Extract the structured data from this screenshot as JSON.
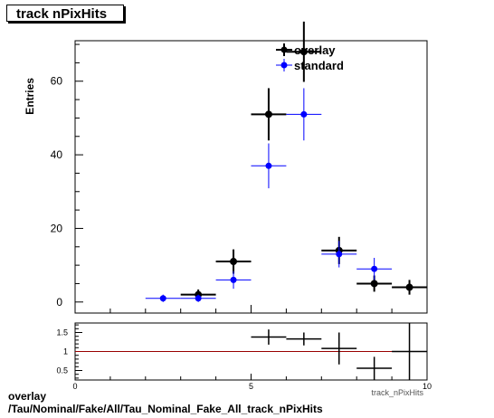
{
  "title": "track nPixHits",
  "footer": {
    "line1": "overlay",
    "line2": "/Tau/Nominal/Fake/All/Tau_Nominal_Fake_All_track_nPixHits"
  },
  "chart_data": [
    {
      "type": "scatter",
      "panel": "main",
      "ylabel": "Entries",
      "xlim": [
        0,
        10
      ],
      "ylim": [
        -3,
        71
      ],
      "yticks": [
        0,
        20,
        40,
        60
      ],
      "legend": {
        "placement": "top-right",
        "entries": [
          "overlay",
          "standard"
        ]
      },
      "series": [
        {
          "name": "overlay",
          "color": "#000000",
          "points": [
            {
              "x": 3.5,
              "y": 2,
              "yerr": 1.4
            },
            {
              "x": 4.5,
              "y": 11,
              "yerr": 3.3
            },
            {
              "x": 5.5,
              "y": 51,
              "yerr": 7.1
            },
            {
              "x": 6.5,
              "y": 68,
              "yerr": 8.2
            },
            {
              "x": 7.5,
              "y": 14,
              "yerr": 3.7
            },
            {
              "x": 8.5,
              "y": 5,
              "yerr": 2.2
            },
            {
              "x": 9.5,
              "y": 4,
              "yerr": 2.0
            }
          ]
        },
        {
          "name": "standard",
          "color": "#0000ff",
          "points": [
            {
              "x": 2.5,
              "y": 1,
              "yerr": 1.0
            },
            {
              "x": 3.5,
              "y": 1,
              "yerr": 1.0
            },
            {
              "x": 4.5,
              "y": 6,
              "yerr": 2.4
            },
            {
              "x": 5.5,
              "y": 37,
              "yerr": 6.1
            },
            {
              "x": 6.5,
              "y": 51,
              "yerr": 7.1
            },
            {
              "x": 7.5,
              "y": 13,
              "yerr": 3.6
            },
            {
              "x": 8.5,
              "y": 9,
              "yerr": 3.0
            }
          ]
        }
      ]
    },
    {
      "type": "scatter",
      "panel": "ratio",
      "xlim": [
        0,
        10
      ],
      "ylim": [
        0.25,
        1.75
      ],
      "xticks": [
        0,
        5,
        10
      ],
      "yticks": [
        0.5,
        1,
        1.5
      ],
      "xlabel": "track_nPixHits",
      "reference_line": {
        "y": 1,
        "color": "#990000"
      },
      "series": [
        {
          "name": "ratio",
          "color": "#000000",
          "points": [
            {
              "x": 5.5,
              "y": 1.38,
              "yerr": 0.2
            },
            {
              "x": 6.5,
              "y": 1.33,
              "yerr": 0.17
            },
            {
              "x": 7.5,
              "y": 1.08,
              "yerr": 0.42
            },
            {
              "x": 8.5,
              "y": 0.56,
              "yerr": 0.3
            },
            {
              "x": 9.5,
              "y": 1.0,
              "yerr": 1.0
            }
          ]
        }
      ]
    }
  ]
}
